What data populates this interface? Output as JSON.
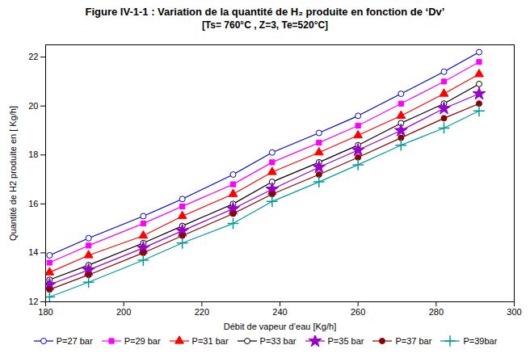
{
  "chart_data": {
    "type": "line",
    "title": "Figure IV-1-1 : Variation de la quantité de H₂ produite en fonction de ‘Dv’",
    "subtitle": "[Ts= 760°C , Z=3, Te=520°C]",
    "xlabel": "Débit de vapeur d’eau [Kg/h]",
    "ylabel": "Quantité de H2 produite en [ Kg/h]",
    "xlim": [
      180,
      300
    ],
    "ylim": [
      12,
      22.5
    ],
    "xticks": [
      180,
      200,
      220,
      240,
      260,
      280,
      300
    ],
    "yticks": [
      12,
      14,
      16,
      18,
      20,
      22
    ],
    "grid": false,
    "legend": "bottom",
    "x": [
      181,
      191,
      205,
      215,
      228,
      238,
      250,
      260,
      271,
      282,
      291
    ],
    "series": [
      {
        "name": "P=27 bar",
        "color": "#0000CC",
        "marker": "circle-open",
        "values": [
          13.9,
          14.6,
          15.5,
          16.2,
          17.2,
          18.1,
          18.9,
          19.6,
          20.5,
          21.4,
          22.2
        ]
      },
      {
        "name": "P=29 bar",
        "color": "#FF00FF",
        "marker": "square",
        "values": [
          13.6,
          14.3,
          15.2,
          15.9,
          16.8,
          17.7,
          18.5,
          19.2,
          20.1,
          21.0,
          21.8
        ]
      },
      {
        "name": "P=31 bar",
        "color": "#FF0000",
        "marker": "triangle",
        "values": [
          13.2,
          13.9,
          14.7,
          15.5,
          16.4,
          17.3,
          18.1,
          18.8,
          19.6,
          20.5,
          21.3
        ]
      },
      {
        "name": "P=33 bar",
        "color": "#000000",
        "marker": "circle-open",
        "values": [
          12.9,
          13.5,
          14.4,
          15.1,
          16.0,
          16.9,
          17.7,
          18.4,
          19.3,
          20.1,
          20.9
        ]
      },
      {
        "name": "P=35 bar",
        "color": "#9900CC",
        "marker": "star",
        "values": [
          12.7,
          13.3,
          14.2,
          14.9,
          15.8,
          16.6,
          17.5,
          18.2,
          19.0,
          19.9,
          20.5
        ]
      },
      {
        "name": "P=37 bar",
        "color": "#880000",
        "marker": "circle",
        "values": [
          12.5,
          13.1,
          14.0,
          14.7,
          15.6,
          16.4,
          17.2,
          17.9,
          18.7,
          19.5,
          20.1
        ]
      },
      {
        "name": "P=39bar",
        "color": "#009999",
        "marker": "plus",
        "values": [
          12.2,
          12.8,
          13.7,
          14.4,
          15.2,
          16.1,
          16.9,
          17.6,
          18.4,
          19.1,
          19.8
        ]
      }
    ]
  }
}
